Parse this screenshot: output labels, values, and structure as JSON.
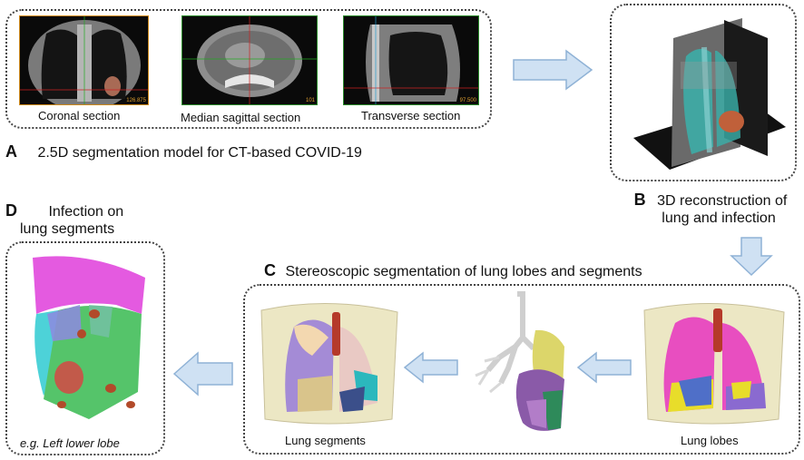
{
  "panel_a": {
    "letter": "A",
    "title": "2.5D segmentation model for CT-based COVID-19",
    "images": [
      {
        "label": "Coronal section",
        "readout": "126.875"
      },
      {
        "label": "Median sagittal section",
        "readout": "101"
      },
      {
        "label": "Transverse section",
        "readout": "97.500"
      }
    ]
  },
  "panel_b": {
    "letter": "B",
    "title_line1": "3D reconstruction of",
    "title_line2": "lung and infection"
  },
  "panel_c": {
    "letter": "C",
    "title": "Stereoscopic segmentation of lung lobes and segments",
    "left_label": "Lung segments",
    "right_label": "Lung lobes"
  },
  "panel_d": {
    "letter": "D",
    "title_line1": "Infection on",
    "title_line2": "lung segments",
    "caption": "e.g. Left lower lobe"
  },
  "colors": {
    "arrow_fill": "#cfe1f3",
    "arrow_stroke": "#8fb2d6",
    "box_border": "#444444"
  }
}
